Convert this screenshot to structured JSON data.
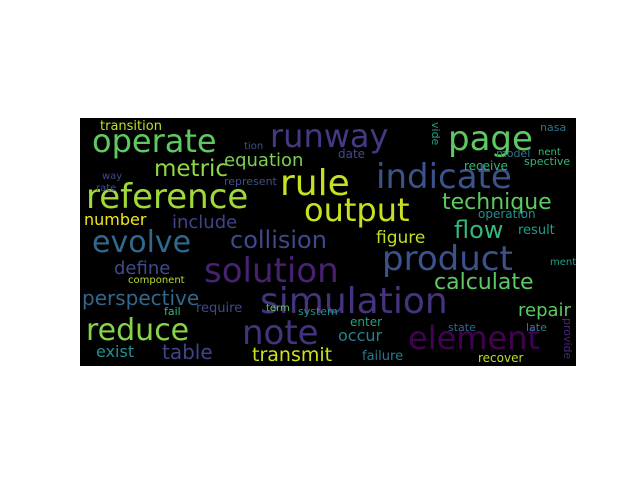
{
  "word_cloud": {
    "background": "#000000",
    "words": [
      {
        "text": "operate",
        "color": "#5ec962"
      },
      {
        "text": "runway",
        "color": "#443a83"
      },
      {
        "text": "page",
        "color": "#5ec962"
      },
      {
        "text": "transition",
        "color": "#c2df23"
      },
      {
        "text": "metric",
        "color": "#8fd744"
      },
      {
        "text": "equation",
        "color": "#7ad151"
      },
      {
        "text": "rule",
        "color": "#c8e020"
      },
      {
        "text": "indicate",
        "color": "#3b528b"
      },
      {
        "text": "reference",
        "color": "#a0da39"
      },
      {
        "text": "output",
        "color": "#c8e020"
      },
      {
        "text": "technique",
        "color": "#5ec962"
      },
      {
        "text": "date",
        "color": "#3e4c8a"
      },
      {
        "text": "receive",
        "color": "#35b779"
      },
      {
        "text": "spective",
        "color": "#35b779"
      },
      {
        "text": "evolve",
        "color": "#31688e"
      },
      {
        "text": "collision",
        "color": "#3e4a89"
      },
      {
        "text": "figure",
        "color": "#c2df23"
      },
      {
        "text": "flow",
        "color": "#35b779"
      },
      {
        "text": "number",
        "color": "#f1e51d"
      },
      {
        "text": "include",
        "color": "#414487"
      },
      {
        "text": "operation",
        "color": "#21918c"
      },
      {
        "text": "result",
        "color": "#1f9e89"
      },
      {
        "text": "solution",
        "color": "#482173"
      },
      {
        "text": "product",
        "color": "#3b528b"
      },
      {
        "text": "define",
        "color": "#3e4c8a"
      },
      {
        "text": "calculate",
        "color": "#5ec962"
      },
      {
        "text": "perspective",
        "color": "#31688e"
      },
      {
        "text": "simulation",
        "color": "#46337e"
      },
      {
        "text": "repair",
        "color": "#5ec962"
      },
      {
        "text": "reduce",
        "color": "#86d549"
      },
      {
        "text": "note",
        "color": "#46337e"
      },
      {
        "text": "element",
        "color": "#440154"
      },
      {
        "text": "table",
        "color": "#414487"
      },
      {
        "text": "exist",
        "color": "#21918c"
      },
      {
        "text": "transmit",
        "color": "#d0e11c"
      },
      {
        "text": "occur",
        "color": "#26828e"
      },
      {
        "text": "enter",
        "color": "#1fa187"
      },
      {
        "text": "failure",
        "color": "#2a788e"
      },
      {
        "text": "recover",
        "color": "#bddf26"
      },
      {
        "text": "component",
        "color": "#b5de2b"
      },
      {
        "text": "require",
        "color": "#3e4a89"
      },
      {
        "text": "fail",
        "color": "#35b779"
      },
      {
        "text": "system",
        "color": "#21918c"
      },
      {
        "text": "represent",
        "color": "#3b528b"
      },
      {
        "text": "model",
        "color": "#2a788e"
      },
      {
        "text": "nasa",
        "color": "#2c728e"
      },
      {
        "text": "state",
        "color": "#31688e"
      },
      {
        "text": "late",
        "color": "#26828e"
      },
      {
        "text": "ment",
        "color": "#1f9e89"
      },
      {
        "text": "nent",
        "color": "#35b779"
      },
      {
        "text": "rate",
        "color": "#3b528b"
      },
      {
        "text": "way",
        "color": "#3e4c8a"
      },
      {
        "text": "term",
        "color": "#5ec962"
      },
      {
        "text": "tion",
        "color": "#3b528b"
      },
      {
        "text": "vide",
        "color": "#1f9e89"
      },
      {
        "text": "provide",
        "color": "#482878"
      }
    ]
  }
}
